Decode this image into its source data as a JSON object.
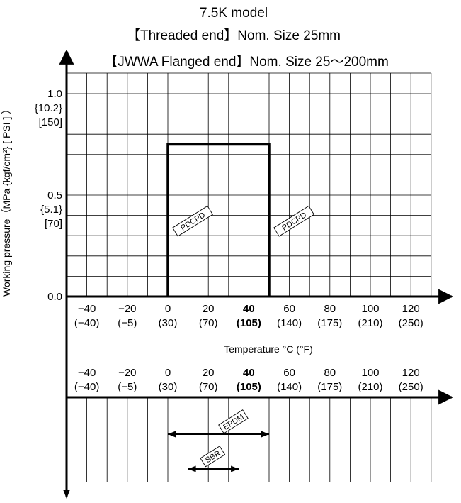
{
  "chart_data": {
    "type": "line",
    "title_lines": [
      "7.5K model",
      "【Threaded end】Nom. Size 25mm",
      "【JWWA Flanged end】Nom. Size 25〜200mm"
    ],
    "ylabel": "Working pressure（MPa {kgf/cm²} [ PSI ] ）",
    "xlabel": "Temperature °C (°F)",
    "xlim": [
      -50,
      130
    ],
    "ylim": [
      0,
      1.0
    ],
    "x_ticks": [
      {
        "c": "−40",
        "f": "(−40)",
        "v": -40
      },
      {
        "c": "−20",
        "f": "(−5)",
        "v": -20
      },
      {
        "c": "0",
        "f": "(30)",
        "v": 0
      },
      {
        "c": "20",
        "f": "(70)",
        "v": 20
      },
      {
        "c": "40",
        "f": "(105)",
        "v": 40,
        "bold": true
      },
      {
        "c": "60",
        "f": "(140)",
        "v": 60
      },
      {
        "c": "80",
        "f": "(175)",
        "v": 80
      },
      {
        "c": "100",
        "f": "(210)",
        "v": 100
      },
      {
        "c": "120",
        "f": "(250)",
        "v": 120
      }
    ],
    "y_ticks": [
      {
        "v": 1.0,
        "lines": [
          "1.0",
          "{10.2}",
          "[150]"
        ]
      },
      {
        "v": 0.5,
        "lines": [
          "0.5",
          "{5.1}",
          "[70]"
        ]
      },
      {
        "v": 0.0,
        "lines": [
          "0.0"
        ]
      }
    ],
    "series": [
      {
        "name": "PDCPD",
        "x": [
          0,
          0,
          50,
          50
        ],
        "y": [
          0,
          0.75,
          0.75,
          0
        ]
      }
    ],
    "curve_labels": [
      "PDCPD",
      "PDCPD"
    ],
    "ranges": [
      {
        "name": "EPDM",
        "from": 0,
        "to": 50
      },
      {
        "name": "SBR",
        "from": 10,
        "to": 35
      }
    ],
    "grid": true
  }
}
